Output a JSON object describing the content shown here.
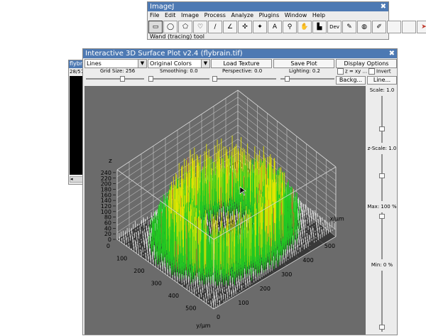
{
  "imagej": {
    "title": "ImageJ",
    "menu": [
      "File",
      "Edit",
      "Image",
      "Process",
      "Analyze",
      "Plugins",
      "Window",
      "Help"
    ],
    "tools": [
      {
        "name": "rectangle-tool-icon",
        "glyph": "▭"
      },
      {
        "name": "oval-tool-icon",
        "glyph": "◯"
      },
      {
        "name": "polygon-tool-icon",
        "glyph": "⬠"
      },
      {
        "name": "freehand-tool-icon",
        "glyph": "♡"
      },
      {
        "name": "line-tool-icon",
        "glyph": "∕"
      },
      {
        "name": "angle-tool-icon",
        "glyph": "∠"
      },
      {
        "name": "point-tool-icon",
        "glyph": "✣"
      },
      {
        "name": "wand-tool-icon",
        "glyph": "✦"
      },
      {
        "name": "text-tool-icon",
        "glyph": "A"
      },
      {
        "name": "magnifier-tool-icon",
        "glyph": "⚲"
      },
      {
        "name": "hand-tool-icon",
        "glyph": "✋"
      },
      {
        "name": "dropper-tool-icon",
        "glyph": "▙"
      },
      {
        "name": "dev-tool-icon",
        "glyph": "Dev"
      },
      {
        "name": "brush-tool-icon",
        "glyph": "✎"
      },
      {
        "name": "flood-fill-tool-icon",
        "glyph": "◍"
      },
      {
        "name": "pencil-tool-icon",
        "glyph": "✐"
      },
      {
        "name": "empty-slot-1",
        "glyph": ""
      },
      {
        "name": "empty-slot-2",
        "glyph": ""
      },
      {
        "name": "more-tools-arrow-icon",
        "glyph": "➤"
      }
    ],
    "status": "Wand (tracing) tool"
  },
  "flybrain_window": {
    "title": "flybrain",
    "subtitle": "28/57",
    "scroll_glyph": "◂"
  },
  "plot_window": {
    "title": "Interactive 3D Surface Plot v2.4 (flybrain.tif)",
    "display_select": "Lines",
    "color_select": "Original Colors",
    "load_texture": "Load Texture",
    "save_plot": "Save Plot",
    "display_options": "Display Options",
    "grid_size_label": "Grid Size: 256",
    "smoothing_label": "Smoothing: 0.0",
    "perspective_label": "Perspective: 0.0",
    "lighting_label": "Lighting: 0.2",
    "z_eq_xy": "z = xy ...",
    "invert": "Invert",
    "background_btn": "Backg...",
    "line_btn": "Line...",
    "scale_label": "Scale: 1.0",
    "zscale_label": "z-Scale: 1.0",
    "max_label": "Max: 100 %",
    "min_label": "Min: 0 %"
  },
  "plot": {
    "z_label": "z",
    "z_ticks": [
      "0",
      "20",
      "40",
      "60",
      "80",
      "100",
      "120",
      "140",
      "160",
      "180",
      "200",
      "220",
      "240"
    ],
    "y_label": "y/µm",
    "y_ticks": [
      "0",
      "100",
      "200",
      "300",
      "400",
      "500"
    ],
    "x_label": "x/µm",
    "x_ticks": [
      "0",
      "100",
      "200",
      "300",
      "400",
      "500"
    ],
    "colors": {
      "background": "#6b6b6b",
      "grid": "#d8d8d8",
      "low": "#e8e8e8",
      "mid": "#22cc22",
      "high": "#e6e600",
      "accent": "#d06a28"
    }
  }
}
